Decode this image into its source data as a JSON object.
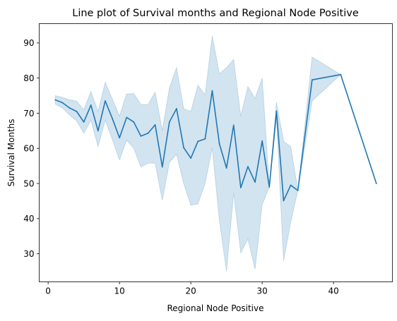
{
  "chart_data": {
    "type": "line",
    "title": "Line plot of Survival months and Regional Node Positive",
    "xlabel": "Regional Node Positive",
    "ylabel": "Survival Months",
    "xlim": [
      -1.25,
      48.25
    ],
    "ylim": [
      22,
      95.5
    ],
    "xticks": [
      0,
      10,
      20,
      30,
      40
    ],
    "yticks": [
      30,
      40,
      50,
      60,
      70,
      80,
      90
    ],
    "grid": false,
    "legend": "none",
    "colors": {
      "line": "#1f77b4",
      "band": "#1f77b4"
    },
    "series": [
      {
        "x": [
          1,
          2,
          3,
          4,
          5,
          6,
          7,
          8,
          9,
          10,
          11,
          12,
          13,
          14,
          15,
          16,
          17,
          18,
          19,
          20,
          21,
          22,
          23,
          24,
          25,
          26,
          27,
          28,
          29,
          30,
          31,
          32,
          33,
          34,
          35,
          37,
          41,
          46
        ],
        "y": [
          73.8,
          73.0,
          71.5,
          70.5,
          67.5,
          72.3,
          65.0,
          73.5,
          68.5,
          63.0,
          68.8,
          67.5,
          63.5,
          64.3,
          66.7,
          54.7,
          67.5,
          71.3,
          60.2,
          57.2,
          62.0,
          62.7,
          76.4,
          61.3,
          54.4,
          66.6,
          48.8,
          54.8,
          50.4,
          62.1,
          49.0,
          70.6,
          45.1,
          49.5,
          48.0,
          79.5,
          81.0,
          50.0
        ],
        "lower": [
          72.6,
          71.5,
          69.5,
          67.8,
          64.3,
          68.0,
          60.5,
          68.0,
          62.5,
          56.7,
          62.3,
          60.0,
          54.7,
          55.8,
          55.8,
          45.2,
          56.0,
          58.3,
          50.0,
          43.8,
          44.2,
          50.0,
          60.1,
          39.5,
          25.0,
          47.3,
          30.2,
          34.2,
          25.6,
          44.0,
          49.0,
          68.5,
          28.0,
          39.0,
          48.0,
          73.5,
          81.0,
          50.0
        ],
        "upper": [
          75.0,
          74.5,
          73.8,
          73.4,
          71.0,
          76.2,
          70.5,
          78.8,
          74.0,
          69.2,
          75.5,
          75.6,
          72.5,
          72.5,
          76.0,
          65.0,
          77.2,
          83.0,
          71.3,
          70.5,
          78.0,
          75.2,
          92.0,
          81.2,
          83.0,
          85.3,
          69.2,
          77.6,
          74.2,
          80.0,
          49.0,
          73.1,
          62.0,
          60.5,
          48.0,
          86.0,
          81.0,
          50.0
        ]
      }
    ]
  }
}
